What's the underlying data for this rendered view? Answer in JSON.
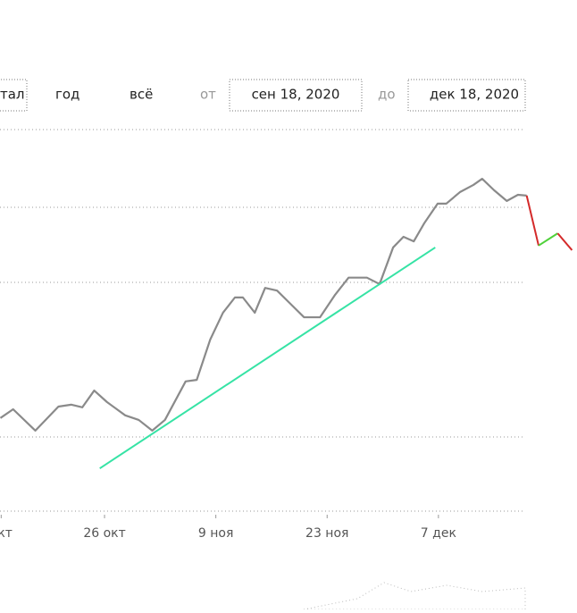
{
  "toolbar": {
    "period_buttons": [
      "тал",
      "год",
      "всё"
    ],
    "from_label": "от",
    "from_date": "сен 18, 2020",
    "to_label": "до",
    "to_date": "дек 18, 2020"
  },
  "chart_data": {
    "type": "line",
    "xlim": [
      286.85,
      359.43
    ],
    "ylim": [
      0,
      100
    ],
    "xticks": [
      {
        "value": 287,
        "label": "окт"
      },
      {
        "value": 300,
        "label": "26 окт"
      },
      {
        "value": 314,
        "label": "9 ноя"
      },
      {
        "value": 328,
        "label": "23 ноя"
      },
      {
        "value": 342,
        "label": "7 дек"
      }
    ],
    "series": [
      {
        "color": "#8a8a8a",
        "x": [
          286.9,
          288.5,
          291.3,
          294.2,
          295.8,
          297.2,
          298.7,
          300.3,
          302.6,
          304.3,
          306.0,
          307.6,
          310.2,
          311.6,
          313.3,
          314.9,
          316.4,
          317.4,
          318.9,
          320.2,
          321.7,
          323.4,
          325.1,
          327.1,
          329.0,
          330.7,
          333.0,
          334.6,
          336.3,
          337.6,
          338.9,
          340.2,
          341.9,
          343.0,
          344.7,
          346.4,
          347.5,
          349.0,
          350.6,
          352.0,
          353.1
        ],
        "values": [
          24.4,
          26.7,
          21.1,
          27.4,
          27.9,
          27.2,
          31.6,
          28.6,
          25.1,
          23.9,
          21.1,
          23.9,
          34.0,
          34.4,
          45.0,
          52.0,
          56.0,
          56.0,
          52.0,
          58.5,
          57.8,
          54.3,
          50.8,
          50.8,
          56.7,
          61.2,
          61.2,
          59.5,
          69.1,
          71.9,
          70.7,
          75.4,
          80.6,
          80.6,
          83.6,
          85.5,
          87.1,
          84.1,
          81.3,
          82.9,
          82.7
        ]
      },
      {
        "color": "#d42a2a",
        "x": [
          353.1,
          354.6
        ],
        "values": [
          82.7,
          69.6
        ]
      },
      {
        "color": "#4fd13a",
        "x": [
          354.6,
          357.0
        ],
        "values": [
          69.6,
          72.8
        ]
      },
      {
        "color": "#d42a2a",
        "x": [
          357.0,
          358.8
        ],
        "values": [
          72.8,
          68.4
        ]
      },
      {
        "color": "#36e3a5",
        "x": [
          299.4,
          341.6
        ],
        "values": [
          11.2,
          69.1
        ]
      }
    ]
  }
}
